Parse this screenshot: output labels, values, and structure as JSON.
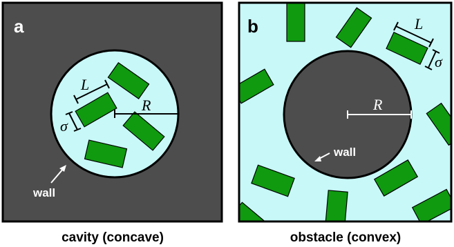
{
  "panels": {
    "a": {
      "letter": "a",
      "caption": "cavity (concave)",
      "wall_label": "wall",
      "L_label": "L",
      "sigma_label": "σ",
      "R_label": "R"
    },
    "b": {
      "letter": "b",
      "caption": "obstacle (convex)",
      "wall_label": "wall",
      "L_label": "L",
      "sigma_label": "σ",
      "R_label": "R"
    }
  },
  "colors": {
    "wall_dark": "#4d4d4d",
    "fluid": "#c8f8f8",
    "rod": "#0f9a0f",
    "outline": "#000000",
    "white": "#ffffff"
  }
}
